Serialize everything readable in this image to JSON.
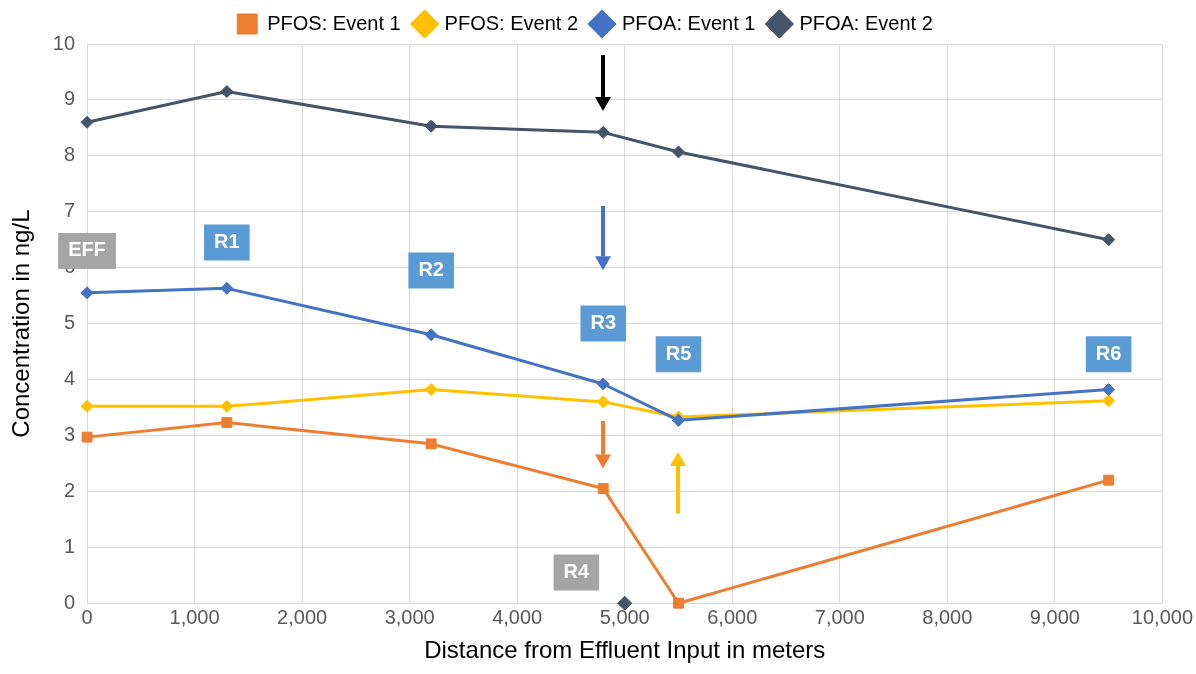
{
  "chart_data": {
    "type": "line",
    "xlabel": "Distance from Effluent Input in meters",
    "ylabel": "Concentration in ng/L",
    "xlim": [
      0,
      10000
    ],
    "xticks": [
      0,
      {
        "value": 1000,
        "label": "1,000"
      },
      {
        "value": 2000,
        "label": "2,000"
      },
      {
        "value": 3000,
        "label": "3,000"
      },
      {
        "value": 4000,
        "label": "4,000"
      },
      {
        "value": 5000,
        "label": "5,000"
      },
      {
        "value": 6000,
        "label": "6,000"
      },
      {
        "value": 7000,
        "label": "7,000"
      },
      {
        "value": 8000,
        "label": "8,000"
      },
      {
        "value": 9000,
        "label": "9,000"
      },
      {
        "value": 10000,
        "label": "10,000"
      }
    ],
    "ylim": [
      0,
      10
    ],
    "yticks": [
      0,
      1,
      2,
      3,
      4,
      5,
      6,
      7,
      8,
      9,
      10
    ],
    "grid": true,
    "legend": "top",
    "x": [
      0,
      1300,
      3200,
      4800,
      5500,
      9500
    ],
    "series": [
      {
        "name": "PFOS: Event 1",
        "color": "#ed7d31",
        "marker": "square",
        "values": [
          2.97,
          3.23,
          2.85,
          2.05,
          0,
          2.2
        ]
      },
      {
        "name": "PFOS: Event 2",
        "color": "#ffc000",
        "marker": "diamond",
        "values": [
          3.52,
          3.52,
          3.82,
          3.6,
          3.33,
          3.62
        ]
      },
      {
        "name": "PFOA: Event 1",
        "color": "#4472c4",
        "marker": "diamond",
        "values": [
          5.55,
          5.63,
          4.8,
          3.92,
          3.27,
          3.82
        ]
      },
      {
        "name": "PFOA: Event 2",
        "color": "#44546a",
        "marker": "diamond",
        "values": [
          8.6,
          9.15,
          8.53,
          8.42,
          8.07,
          6.5
        ]
      },
      {
        "type": "scatter",
        "color": "#44546a",
        "marker": "diamond",
        "x": [
          5000
        ],
        "values": [
          0
        ]
      }
    ],
    "annotations": [
      "EFF",
      "R1",
      "R2",
      "R3",
      "R4",
      "R5",
      "R6"
    ]
  }
}
